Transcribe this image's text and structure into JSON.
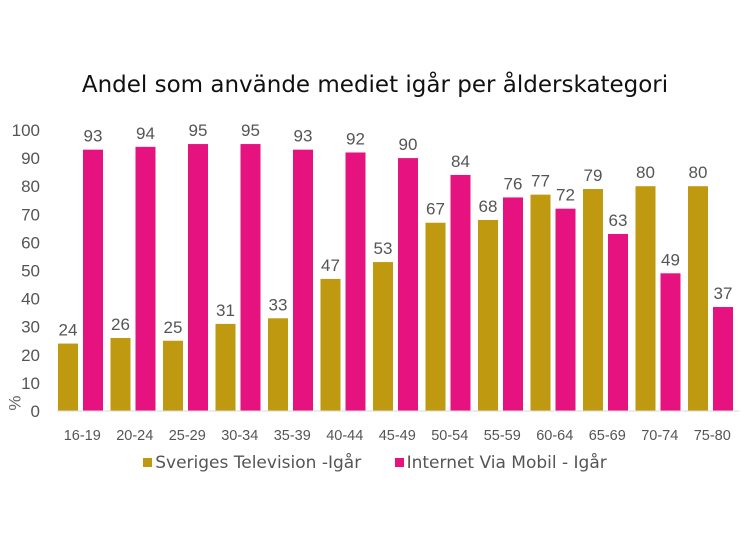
{
  "chart_data": {
    "type": "bar",
    "title": "Andel som använde mediet igår per ålderskategori",
    "ylabel": "%",
    "xlabel": "",
    "ylim": [
      0,
      100
    ],
    "yticks": [
      0,
      10,
      20,
      30,
      40,
      50,
      60,
      70,
      80,
      90,
      100
    ],
    "grid": false,
    "legend": "bottom",
    "categories": [
      "16-19",
      "20-24",
      "25-29",
      "30-34",
      "35-39",
      "40-44",
      "45-49",
      "50-54",
      "55-59",
      "60-64",
      "65-69",
      "70-74",
      "75-80"
    ],
    "series": [
      {
        "name": "Sveriges Television -Igår",
        "color": "#BF9A10",
        "values": [
          24,
          26,
          25,
          31,
          33,
          47,
          53,
          67,
          68,
          77,
          79,
          80,
          80
        ]
      },
      {
        "name": "Internet Via Mobil - Igår",
        "color": "#E6127F",
        "values": [
          93,
          94,
          95,
          95,
          93,
          92,
          90,
          84,
          76,
          72,
          63,
          49,
          37
        ]
      }
    ]
  }
}
